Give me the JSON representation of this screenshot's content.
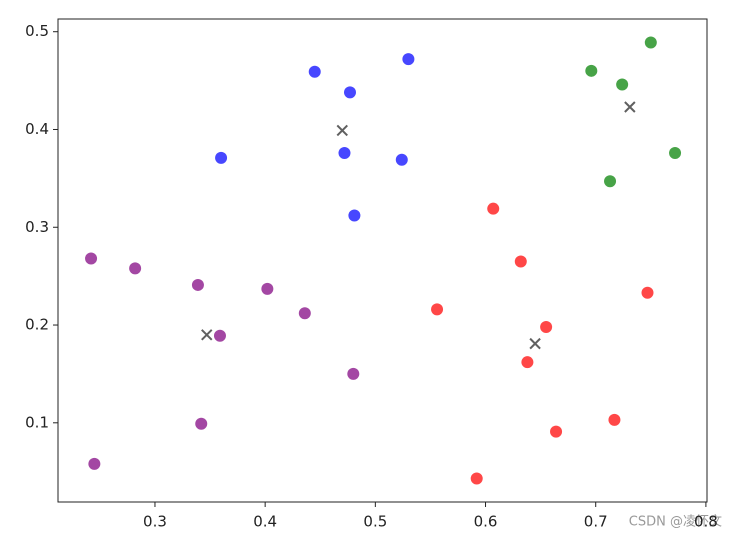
{
  "chart_data": {
    "type": "scatter",
    "xlim": [
      0.212,
      0.801
    ],
    "ylim": [
      0.019,
      0.513
    ],
    "xticks": [
      0.3,
      0.4,
      0.5,
      0.6,
      0.7,
      0.8
    ],
    "yticks": [
      0.1,
      0.2,
      0.3,
      0.4,
      0.5
    ],
    "alpha": 0.72,
    "series": [
      {
        "color": "#0000ff",
        "marker": "o",
        "x": [
          0.445,
          0.53,
          0.477,
          0.36,
          0.472,
          0.524,
          0.481
        ],
        "values": [
          0.459,
          0.472,
          0.438,
          0.371,
          0.376,
          0.369,
          0.312
        ]
      },
      {
        "color": "#008000",
        "marker": "o",
        "x": [
          0.75,
          0.696,
          0.724,
          0.772,
          0.713
        ],
        "values": [
          0.489,
          0.46,
          0.446,
          0.376,
          0.347
        ]
      },
      {
        "color": "#ff0000",
        "marker": "o",
        "x": [
          0.607,
          0.632,
          0.747,
          0.556,
          0.655,
          0.638,
          0.717,
          0.664,
          0.592
        ],
        "values": [
          0.319,
          0.265,
          0.233,
          0.216,
          0.198,
          0.162,
          0.103,
          0.091,
          0.043
        ]
      },
      {
        "color": "#800080",
        "marker": "o",
        "x": [
          0.242,
          0.282,
          0.339,
          0.402,
          0.436,
          0.359,
          0.48,
          0.342,
          0.245
        ],
        "values": [
          0.268,
          0.258,
          0.241,
          0.237,
          0.212,
          0.189,
          0.15,
          0.099,
          0.058
        ]
      },
      {
        "color": "#222222",
        "marker": "x",
        "x": [
          0.47,
          0.731,
          0.645,
          0.347
        ],
        "values": [
          0.399,
          0.423,
          0.181,
          0.19
        ]
      }
    ],
    "watermark": "CSDN @凌怀文"
  }
}
